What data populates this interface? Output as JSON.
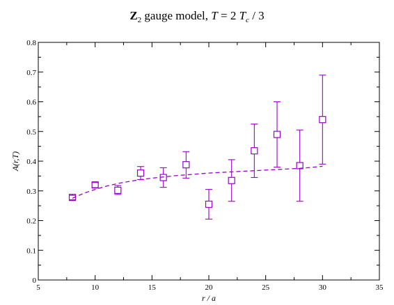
{
  "chart_data": {
    "type": "scatter",
    "title": {
      "symbol": "Z",
      "subscript": "2",
      "rest": " gauge model, ",
      "t_var": "T",
      "t_rel": " = 2 ",
      "tc_var": "T",
      "tc_sub": "c",
      "tc_tail": " / 3"
    },
    "xlabel": "r / a",
    "ylabel": "A(r,T)",
    "xlim": [
      5,
      35
    ],
    "ylim": [
      0,
      0.8
    ],
    "xticks": [
      5,
      10,
      15,
      20,
      25,
      30,
      35
    ],
    "yticks": [
      0,
      0.1,
      0.2,
      0.3,
      0.4,
      0.5,
      0.6,
      0.7,
      0.8
    ],
    "xtick_labels": [
      "5",
      "10",
      "15",
      "20",
      "25",
      "30",
      "35"
    ],
    "ytick_labels": [
      "0",
      "0.1",
      "0.2",
      "0.3",
      "0.4",
      "0.5",
      "0.6",
      "0.7",
      "0.8"
    ],
    "grid": false,
    "color": "#9900cc",
    "points": [
      {
        "x": 8,
        "y": 0.278,
        "lo": 0.27,
        "hi": 0.285
      },
      {
        "x": 10,
        "y": 0.32,
        "lo": 0.311,
        "hi": 0.328
      },
      {
        "x": 12,
        "y": 0.302,
        "lo": 0.288,
        "hi": 0.318
      },
      {
        "x": 14,
        "y": 0.36,
        "lo": 0.338,
        "hi": 0.382
      },
      {
        "x": 16,
        "y": 0.345,
        "lo": 0.312,
        "hi": 0.378
      },
      {
        "x": 18,
        "y": 0.388,
        "lo": 0.343,
        "hi": 0.432
      },
      {
        "x": 20,
        "y": 0.255,
        "lo": 0.205,
        "hi": 0.305
      },
      {
        "x": 22,
        "y": 0.335,
        "lo": 0.265,
        "hi": 0.405
      },
      {
        "x": 24,
        "y": 0.435,
        "lo": 0.345,
        "hi": 0.525
      },
      {
        "x": 26,
        "y": 0.49,
        "lo": 0.38,
        "hi": 0.6
      },
      {
        "x": 28,
        "y": 0.385,
        "lo": 0.265,
        "hi": 0.505
      },
      {
        "x": 30,
        "y": 0.54,
        "lo": 0.39,
        "hi": 0.69
      }
    ],
    "fit_curve": {
      "style": "dashed",
      "x": [
        8,
        9,
        10,
        11,
        12,
        13,
        14,
        15,
        16,
        17,
        18,
        19,
        20,
        21,
        22,
        23,
        24,
        25,
        26,
        27,
        28,
        29,
        30
      ],
      "y": [
        0.275,
        0.292,
        0.305,
        0.316,
        0.325,
        0.332,
        0.338,
        0.343,
        0.347,
        0.351,
        0.354,
        0.357,
        0.36,
        0.362,
        0.364,
        0.366,
        0.368,
        0.37,
        0.372,
        0.374,
        0.376,
        0.379,
        0.383
      ]
    }
  }
}
